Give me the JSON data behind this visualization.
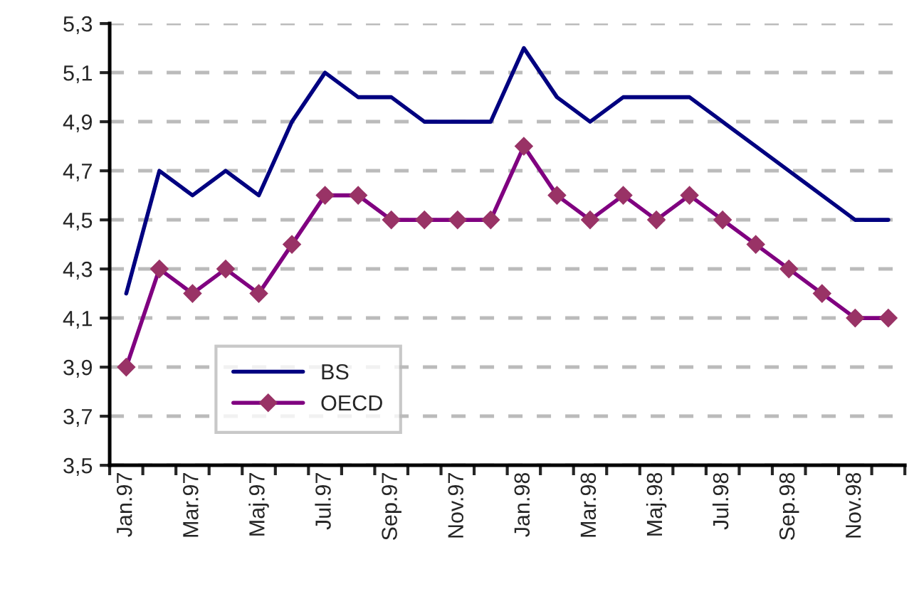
{
  "chart_data": {
    "type": "line",
    "categories": [
      "Jan.97",
      null,
      "Mar.97",
      null,
      "Maj.97",
      null,
      "Jul.97",
      null,
      "Sep.97",
      null,
      "Nov.97",
      null,
      "Jan.98",
      null,
      "Mar.98",
      null,
      "Maj.98",
      null,
      "Jul.98",
      null,
      "Sep.98",
      null,
      "Nov.98",
      null
    ],
    "series": [
      {
        "name": "BS",
        "color": "#000080",
        "marker": "none",
        "values": [
          4.2,
          4.7,
          4.6,
          4.7,
          4.6,
          4.9,
          5.1,
          5.0,
          5.0,
          4.9,
          4.9,
          4.9,
          5.2,
          5.0,
          4.9,
          5.0,
          5.0,
          5.0,
          4.9,
          4.8,
          4.7,
          4.6,
          4.5,
          4.5
        ]
      },
      {
        "name": "OECD",
        "color": "#800080",
        "marker": "diamond",
        "values": [
          3.9,
          4.3,
          4.2,
          4.3,
          4.2,
          4.4,
          4.6,
          4.6,
          4.5,
          4.5,
          4.5,
          4.5,
          4.8,
          4.6,
          4.5,
          4.6,
          4.5,
          4.6,
          4.5,
          4.4,
          4.3,
          4.2,
          4.1,
          4.1
        ]
      }
    ],
    "ylim": [
      3.5,
      5.3
    ],
    "yticks": [
      {
        "value": 3.5,
        "label": "3,5"
      },
      {
        "value": 3.7,
        "label": "3,7"
      },
      {
        "value": 3.9,
        "label": "3,9"
      },
      {
        "value": 4.1,
        "label": "4,1"
      },
      {
        "value": 4.3,
        "label": "4,3"
      },
      {
        "value": 4.5,
        "label": "4,5"
      },
      {
        "value": 4.7,
        "label": "4,7"
      },
      {
        "value": 4.9,
        "label": "4,9"
      },
      {
        "value": 5.1,
        "label": "5,1"
      },
      {
        "value": 5.3,
        "label": "5,3"
      }
    ],
    "grid": "y",
    "legend": "bottom left",
    "line_style": "solid"
  }
}
